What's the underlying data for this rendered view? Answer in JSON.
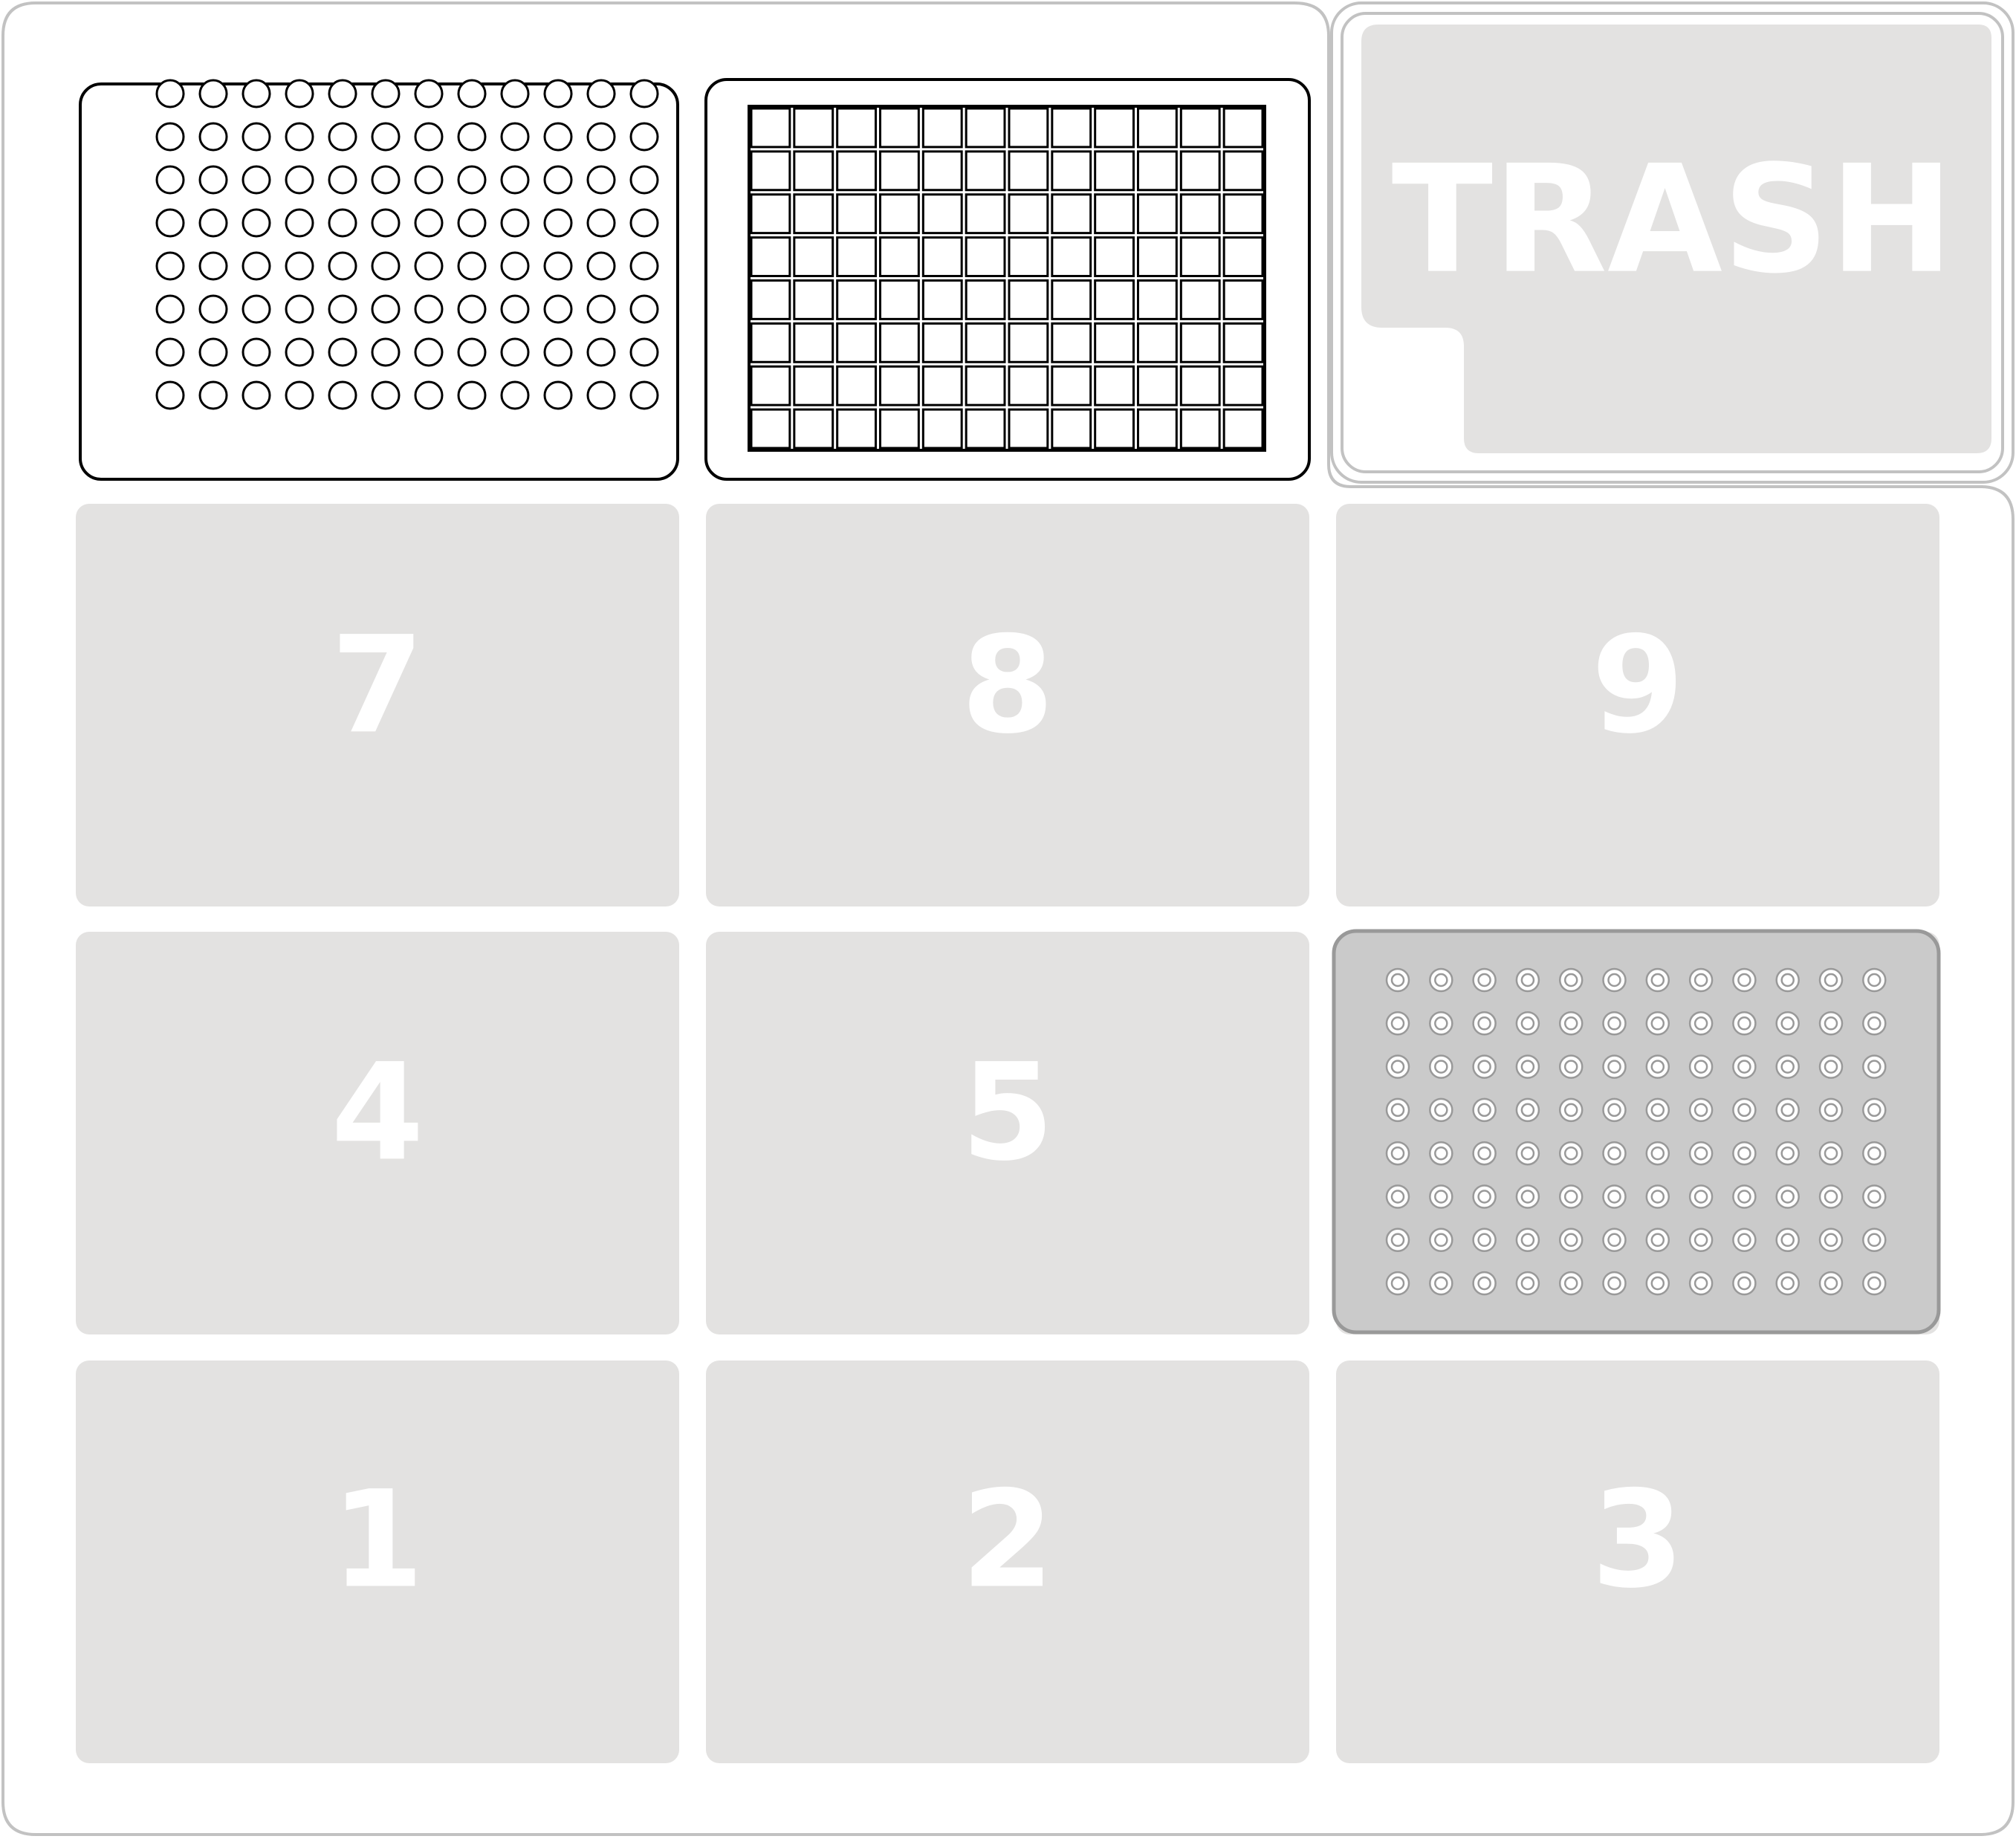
{
  "deck": {
    "colors": {
      "slot_fill": "#e3e2e1",
      "deck_border": "#c2c2c2",
      "labware_outline": "#000000",
      "highlighted_plate_fill": "#cacaca",
      "highlighted_plate_border": "#999999",
      "label_color": "#ffffff"
    },
    "trash": {
      "label": "TRASH"
    },
    "slots": [
      {
        "id": "1",
        "label": "1",
        "row": 3,
        "col": 1,
        "labware": null
      },
      {
        "id": "2",
        "label": "2",
        "row": 3,
        "col": 2,
        "labware": null
      },
      {
        "id": "3",
        "label": "3",
        "row": 3,
        "col": 3,
        "labware": null
      },
      {
        "id": "4",
        "label": "4",
        "row": 2,
        "col": 1,
        "labware": null
      },
      {
        "id": "5",
        "label": "5",
        "row": 2,
        "col": 2,
        "labware": null
      },
      {
        "id": "6",
        "label": "",
        "row": 2,
        "col": 3,
        "labware": "highlighted-96-well-plate"
      },
      {
        "id": "7",
        "label": "7",
        "row": 1,
        "col": 1,
        "labware": null
      },
      {
        "id": "8",
        "label": "8",
        "row": 1,
        "col": 2,
        "labware": null
      },
      {
        "id": "9",
        "label": "9",
        "row": 1,
        "col": 3,
        "labware": null
      },
      {
        "id": "10",
        "label": "",
        "row": 0,
        "col": 1,
        "labware": "96-well-plate-round"
      },
      {
        "id": "11",
        "label": "",
        "row": 0,
        "col": 2,
        "labware": "96-well-plate-square"
      }
    ],
    "plate_rows": 8,
    "plate_cols": 12
  }
}
